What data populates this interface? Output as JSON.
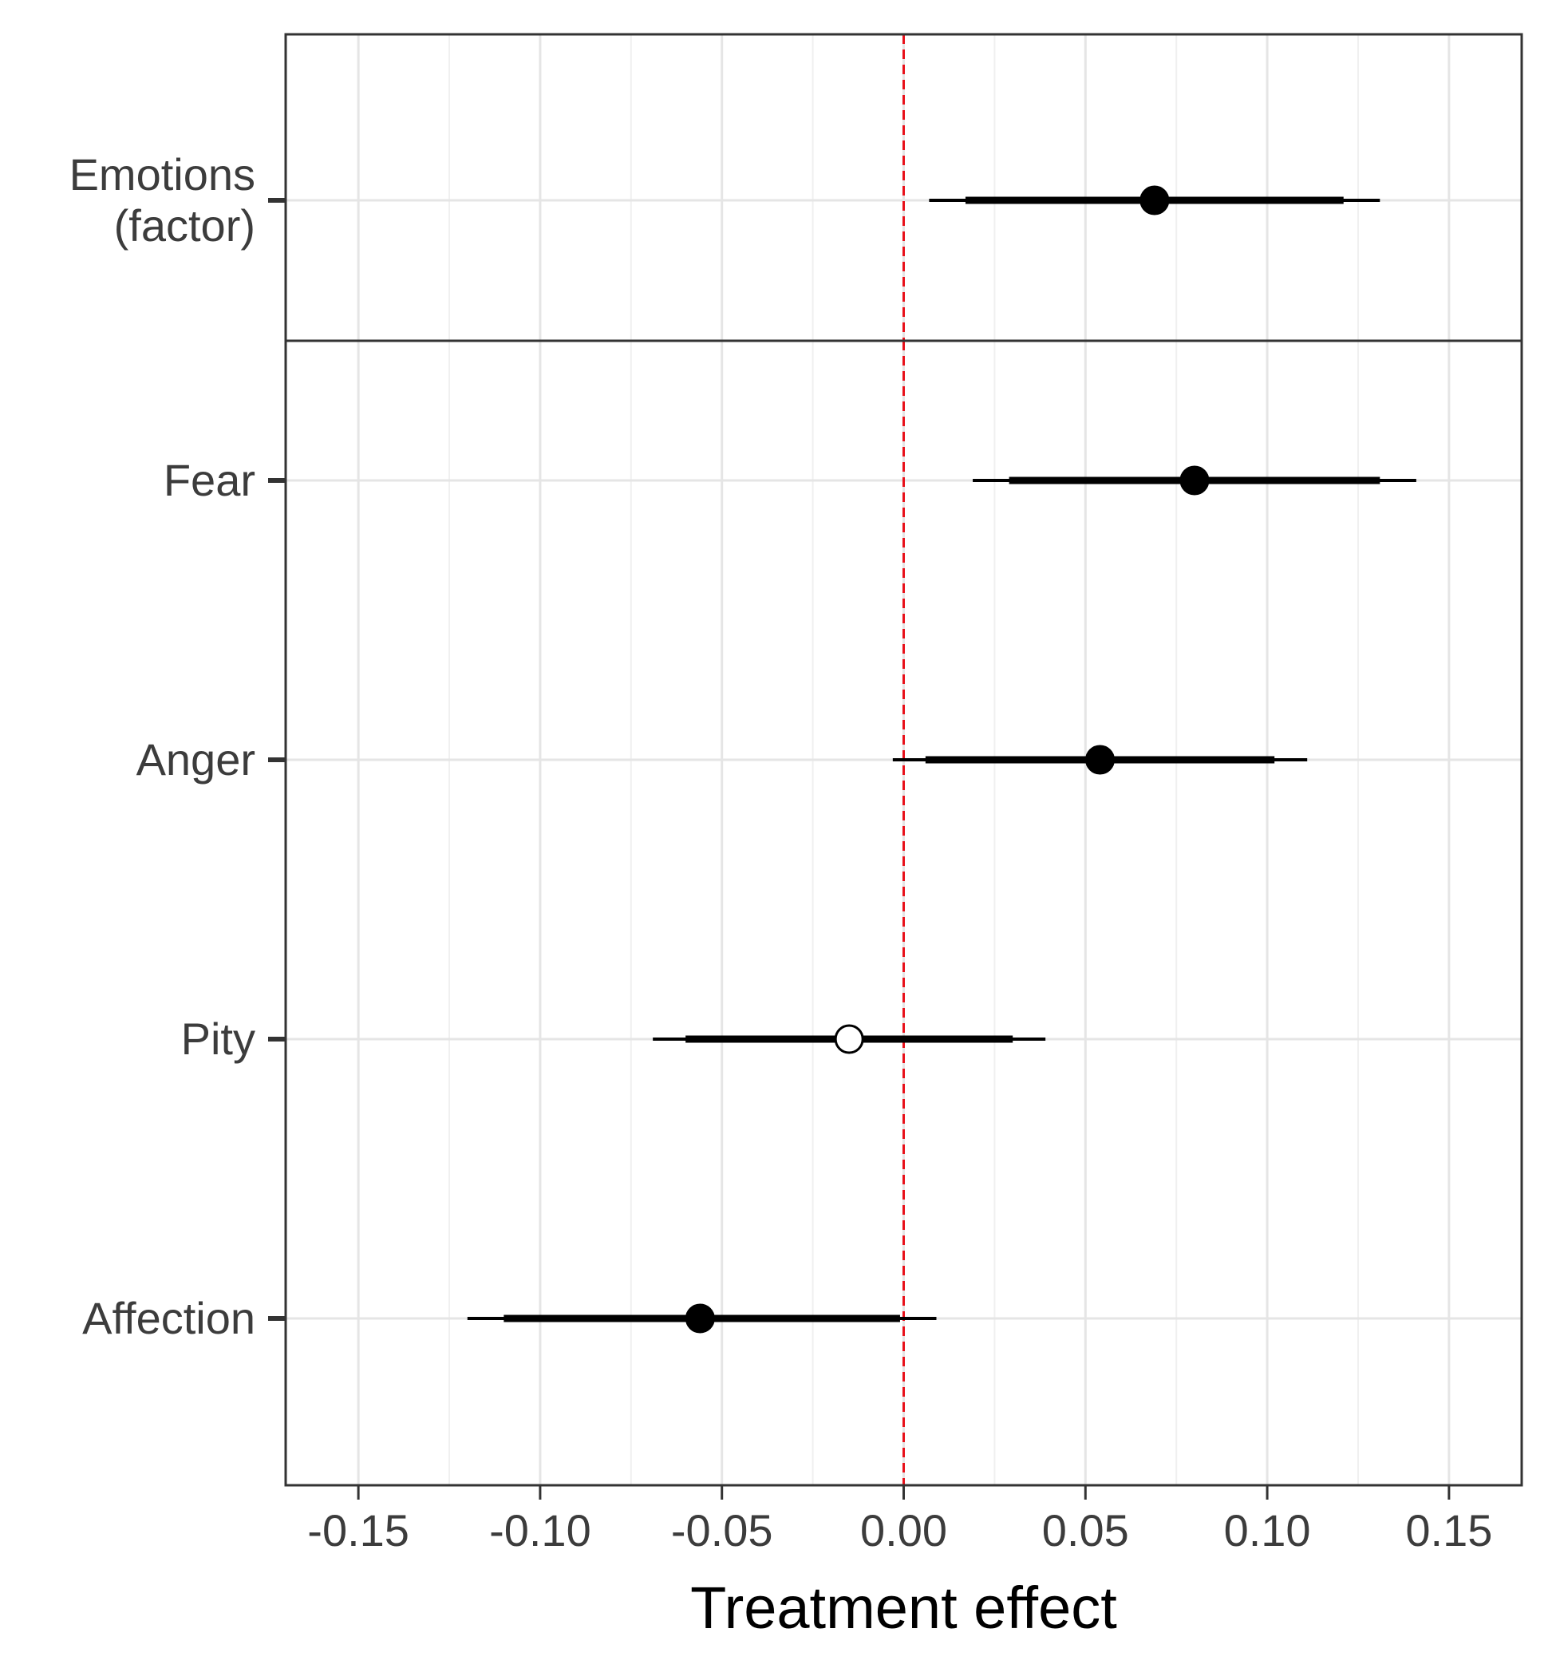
{
  "chart_data": {
    "type": "scatter",
    "subtype": "coefficient-plot",
    "xlabel": "Treatment effect",
    "xlim": [
      -0.17,
      0.17
    ],
    "x_ticks": [
      "-0.15",
      "-0.10",
      "-0.05",
      "0.00",
      "0.05",
      "0.10",
      "0.15"
    ],
    "x_tick_values": [
      -0.15,
      -0.1,
      -0.05,
      0.0,
      0.05,
      0.1,
      0.15
    ],
    "reference_line": {
      "x": 0,
      "style": "dashed",
      "color": "#e8101a"
    },
    "grid": true,
    "panels": [
      {
        "rows": [
          {
            "label": [
              "Emotions",
              "(factor)"
            ],
            "estimate": 0.069,
            "ci_inner": [
              0.017,
              0.121
            ],
            "ci_outer": [
              0.007,
              0.131
            ],
            "significant": true
          }
        ]
      },
      {
        "rows": [
          {
            "label": [
              "Fear"
            ],
            "estimate": 0.08,
            "ci_inner": [
              0.029,
              0.131
            ],
            "ci_outer": [
              0.019,
              0.141
            ],
            "significant": true
          },
          {
            "label": [
              "Anger"
            ],
            "estimate": 0.054,
            "ci_inner": [
              0.006,
              0.102
            ],
            "ci_outer": [
              -0.003,
              0.111
            ],
            "significant": true
          },
          {
            "label": [
              "Pity"
            ],
            "estimate": -0.015,
            "ci_inner": [
              -0.06,
              0.03
            ],
            "ci_outer": [
              -0.069,
              0.039
            ],
            "significant": false
          },
          {
            "label": [
              "Affection"
            ],
            "estimate": -0.056,
            "ci_inner": [
              -0.11,
              -0.001
            ],
            "ci_outer": [
              -0.12,
              0.009
            ],
            "significant": true
          }
        ]
      }
    ]
  }
}
